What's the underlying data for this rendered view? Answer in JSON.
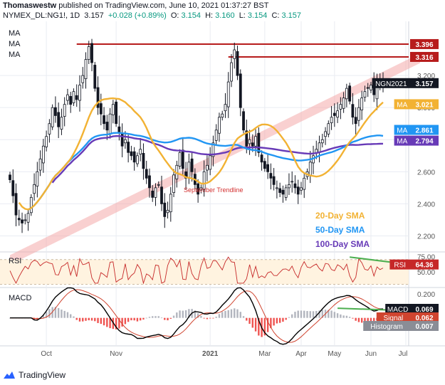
{
  "header": {
    "author": "Thomaswestw",
    "published": "published on TradingView.com, June 10, 2021 01:37:27 BST",
    "symbol": "NYMEX_DL:NG1!, 1D",
    "last": "3.157",
    "change": "+0.028 (+0.89%)",
    "ohlc": [
      {
        "label": "O:",
        "value": "3.154"
      },
      {
        "label": "H:",
        "value": "3.160"
      },
      {
        "label": "L:",
        "value": "3.154"
      },
      {
        "label": "C:",
        "value": "3.157"
      }
    ]
  },
  "legend_ma": [
    "MA",
    "MA",
    "MA"
  ],
  "colors": {
    "background": "#ffffff",
    "grid": "#e9ecf2",
    "candle": "#131722",
    "sma20": "#f2b233",
    "sma50": "#2196f3",
    "sma100": "#673ab7",
    "resistance": "#b71c1c",
    "trend_band": "#f4a9a9",
    "rsi_line": "#c62828",
    "rsi_band": "#fff3e0",
    "green_line": "#4caf50",
    "macd_line": "#000000",
    "signal_line": "#d0442f",
    "hist_pos": "#b2b5be",
    "hist_neg": "#ef5350"
  },
  "chart_data": [
    {
      "type": "line",
      "panel": "price",
      "x_ticks": [
        "Oct",
        "Nov",
        "2021",
        "Mar",
        "Apr",
        "May",
        "Jun",
        "Jul"
      ],
      "y_ticks": [
        "2.200",
        "2.400",
        "2.600",
        "2.800",
        "3.000",
        "3.200"
      ],
      "ylim": [
        2.1,
        3.52
      ],
      "price_tags": [
        {
          "label": "",
          "value": "3.396",
          "color": "#b71c1c"
        },
        {
          "label": "",
          "value": "3.316",
          "color": "#b71c1c"
        },
        {
          "label": "NGN2021",
          "value": "3.157",
          "color": "#131722"
        },
        {
          "label": "MA",
          "value": "3.021",
          "color": "#f2b233"
        },
        {
          "label": "MA",
          "value": "2.861",
          "color": "#2196f3"
        },
        {
          "label": "MA",
          "value": "2.794",
          "color": "#673ab7"
        }
      ],
      "resistance_levels": [
        3.396,
        3.316
      ],
      "annotations": {
        "trendline": "September Trendline",
        "sma20": "20-Day SMA",
        "sma50": "50-Day SMA",
        "sma100": "100-Day SMA"
      },
      "close_series": [
        2.55,
        2.45,
        2.33,
        2.3,
        2.28,
        2.3,
        2.34,
        2.44,
        2.52,
        2.6,
        2.68,
        2.76,
        2.82,
        2.9,
        3.0,
        2.95,
        2.88,
        2.94,
        3.02,
        3.08,
        3.02,
        3.1,
        3.05,
        3.14,
        3.2,
        3.3,
        3.38,
        3.28,
        3.12,
        3.0,
        2.96,
        2.9,
        2.86,
        2.96,
        3.02,
        2.9,
        2.84,
        2.76,
        2.8,
        2.72,
        2.7,
        2.66,
        2.7,
        2.74,
        2.62,
        2.56,
        2.5,
        2.44,
        2.5,
        2.52,
        2.4,
        2.32,
        2.36,
        2.46,
        2.58,
        2.64,
        2.72,
        2.62,
        2.56,
        2.66,
        2.6,
        2.52,
        2.46,
        2.5,
        2.6,
        2.64,
        2.7,
        2.78,
        2.86,
        2.94,
        2.96,
        3.02,
        3.16,
        3.28,
        3.36,
        3.2,
        3.0,
        2.86,
        2.76,
        2.8,
        2.76,
        2.82,
        2.72,
        2.66,
        2.62,
        2.6,
        2.56,
        2.52,
        2.5,
        2.47,
        2.46,
        2.5,
        2.52,
        2.54,
        2.5,
        2.46,
        2.5,
        2.56,
        2.6,
        2.66,
        2.7,
        2.74,
        2.78,
        2.8,
        2.85,
        2.9,
        2.94,
        2.95,
        2.98,
        3.02,
        3.06,
        3.12,
        3.04,
        2.94,
        2.9,
        3.0,
        3.06,
        3.1,
        3.12,
        3.14,
        3.08,
        3.15,
        3.16,
        3.157
      ]
    },
    {
      "type": "line",
      "panel": "rsi",
      "label": "RSI",
      "value": "64.36",
      "y_ticks": [
        "75.00",
        "50.00"
      ],
      "ylim": [
        25,
        80
      ]
    },
    {
      "type": "bar",
      "panel": "macd",
      "label": "MACD",
      "y_ticks": [
        "0.200",
        "0.000"
      ],
      "ylim": [
        -0.22,
        0.24
      ],
      "tags": [
        {
          "label": "MACD",
          "value": "0.069"
        },
        {
          "label": "Signal",
          "value": "0.062"
        },
        {
          "label": "Histogram",
          "value": "0.007"
        }
      ]
    }
  ],
  "footer": {
    "brand": "TradingView"
  }
}
